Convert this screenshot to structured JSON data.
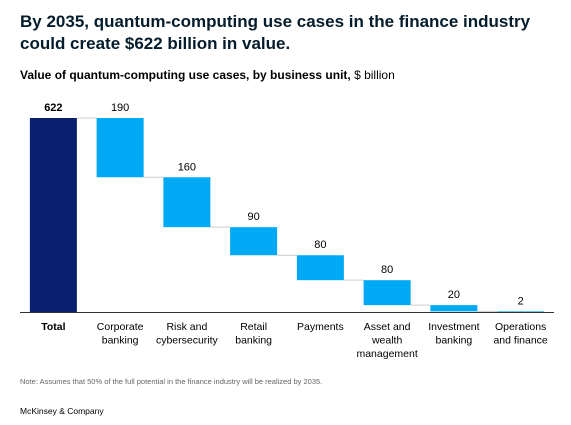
{
  "headline": "By 2035, quantum-computing use cases in the finance industry could create $622 billion in value.",
  "chart_data": {
    "type": "waterfall",
    "title": "Value of quantum-computing use cases, by business unit,",
    "unit": "$ billion",
    "categories": [
      "Total",
      "Corporate banking",
      "Risk and cybersecurity",
      "Retail banking",
      "Payments",
      "Asset and wealth management",
      "Investment banking",
      "Operations and finance"
    ],
    "category_lines": [
      [
        "Total"
      ],
      [
        "Corporate",
        "banking"
      ],
      [
        "Risk and",
        "cybersecurity"
      ],
      [
        "Retail",
        "banking"
      ],
      [
        "Payments"
      ],
      [
        "Asset and",
        "wealth",
        "management"
      ],
      [
        "Investment",
        "banking"
      ],
      [
        "Operations",
        "and finance"
      ]
    ],
    "values": [
      622,
      190,
      160,
      90,
      80,
      80,
      20,
      2
    ],
    "value_labels": [
      "622",
      "190",
      "160",
      "90",
      "80",
      "80",
      "20",
      "2"
    ],
    "total_index": 0,
    "ylim": [
      0,
      622
    ],
    "colors": {
      "total": "#0a1f6e",
      "segment": "#00a9f4",
      "connector": "#cccccc",
      "axis": "#333333"
    }
  },
  "note": "Note: Assumes that 50% of the full potential in the finance industry will be realized by 2035.",
  "brand": "McKinsey & Company"
}
